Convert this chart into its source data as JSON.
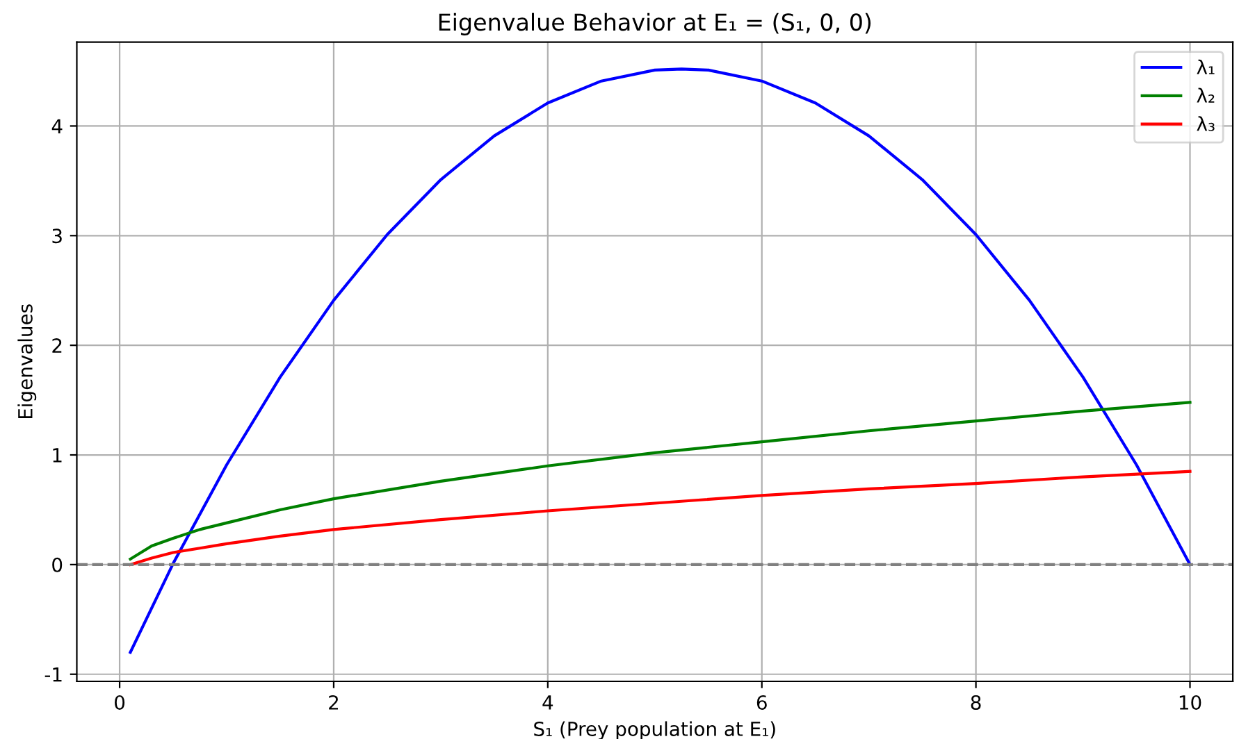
{
  "chart_data": {
    "type": "line",
    "title": "Eigenvalue Behavior at E₁ = (S₁, 0, 0)",
    "xlabel": "S₁ (Prey population at E₁)",
    "ylabel": "Eigenvalues",
    "series": [
      {
        "name": "λ₁",
        "color": "#0000ff",
        "x": [
          0.1,
          0.5,
          1,
          1.5,
          2,
          2.5,
          3,
          3.5,
          4,
          4.5,
          5,
          5.25,
          5.5,
          6,
          6.5,
          7,
          7.5,
          8,
          8.5,
          9,
          9.5,
          10
        ],
        "values": [
          -0.8,
          0.01,
          0.91,
          1.71,
          2.41,
          3.01,
          3.51,
          3.91,
          4.21,
          4.41,
          4.51,
          4.52,
          4.51,
          4.41,
          4.21,
          3.91,
          3.51,
          3.01,
          2.41,
          1.71,
          0.91,
          0.0
        ]
      },
      {
        "name": "λ₂",
        "color": "#008000",
        "x": [
          0.1,
          0.3,
          0.5,
          0.75,
          1,
          1.5,
          2,
          3,
          4,
          5,
          6,
          7,
          8,
          9,
          10
        ],
        "values": [
          0.05,
          0.17,
          0.24,
          0.32,
          0.38,
          0.5,
          0.6,
          0.76,
          0.9,
          1.02,
          1.12,
          1.22,
          1.31,
          1.4,
          1.48
        ]
      },
      {
        "name": "λ₃",
        "color": "#ff0000",
        "x": [
          0.1,
          0.3,
          0.5,
          0.75,
          1,
          1.5,
          2,
          3,
          4,
          5,
          6,
          7,
          8,
          9,
          10
        ],
        "values": [
          0.0,
          0.06,
          0.11,
          0.15,
          0.19,
          0.26,
          0.32,
          0.41,
          0.49,
          0.56,
          0.63,
          0.69,
          0.74,
          0.8,
          0.85
        ]
      }
    ],
    "xlim": [
      -0.4,
      10.4
    ],
    "ylim": [
      -1.065,
      4.765
    ],
    "xticks": [
      0,
      2,
      4,
      6,
      8,
      10
    ],
    "yticks": [
      -1,
      0,
      1,
      2,
      3,
      4
    ],
    "ref_lines": [
      {
        "axis": "y",
        "value": 0,
        "color": "#808080",
        "line_style": "dashed"
      }
    ],
    "grid": true,
    "legend": "top right",
    "marker": "none",
    "line_style": "solid"
  }
}
